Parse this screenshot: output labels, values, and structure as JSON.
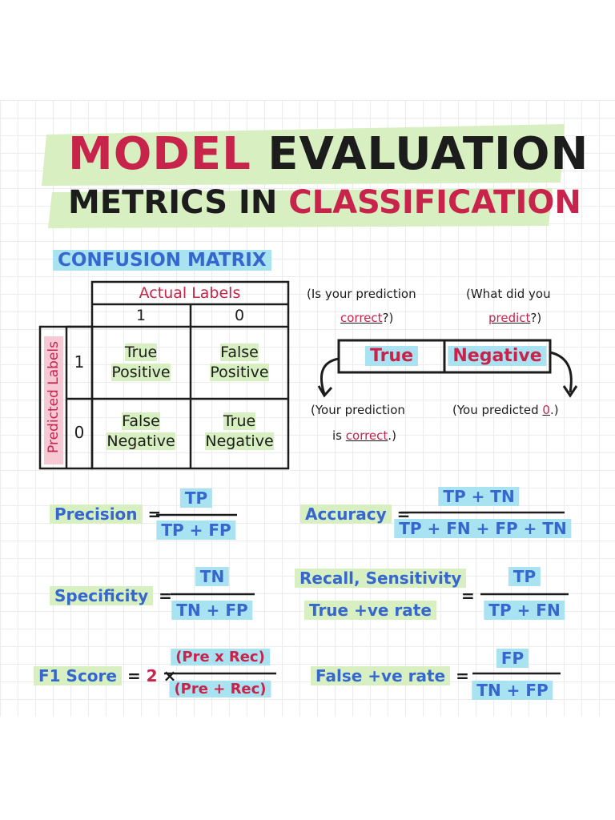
{
  "title": {
    "line1": [
      "MODEL",
      "EVALUATION"
    ],
    "line2": [
      "METRICS IN",
      "CLASSIFICATION"
    ]
  },
  "confusion_matrix": {
    "heading": "CONFUSION MATRIX",
    "actual_labels": "Actual Labels",
    "predicted_labels": "Predicted Labels",
    "actual_classes": [
      "1",
      "0"
    ],
    "predicted_classes": [
      "1",
      "0"
    ],
    "cells": [
      [
        "True Positive",
        "False Positive"
      ],
      [
        "False Negative",
        "True Negative"
      ]
    ]
  },
  "explainer": {
    "question_1": [
      "(Is your prediction",
      "correct",
      "?)"
    ],
    "question_2": [
      "(What did you",
      "predict",
      "?)"
    ],
    "box": [
      "True",
      "Negative"
    ],
    "answer_1": [
      "(Your prediction",
      "is",
      "correct",
      ".)"
    ],
    "answer_2": [
      "(You predicted",
      "0",
      ".)"
    ]
  },
  "formulas": [
    {
      "label": "Precision",
      "equals": "=",
      "numerator": "TP",
      "denominator": "TP + FP"
    },
    {
      "label": "Accuracy",
      "equals": "=",
      "numerator": "TP + TN",
      "denominator": "TP + FN + FP + TN"
    },
    {
      "label": "Specificity",
      "equals": "=",
      "numerator": "TN",
      "denominator": "TN + FP"
    },
    {
      "label": [
        "Recall, Sensitivity",
        "True +ve rate"
      ],
      "equals": "=",
      "numerator": "TP",
      "denominator": "TP + FN"
    },
    {
      "label": "F1 Score",
      "equals": "=",
      "factor": "2",
      "times": "×",
      "numerator": "(Pre x Rec)",
      "denominator": "(Pre + Rec)"
    },
    {
      "label": "False +ve rate",
      "equals": "=",
      "numerator": "FP",
      "denominator": "TN + FP"
    }
  ]
}
